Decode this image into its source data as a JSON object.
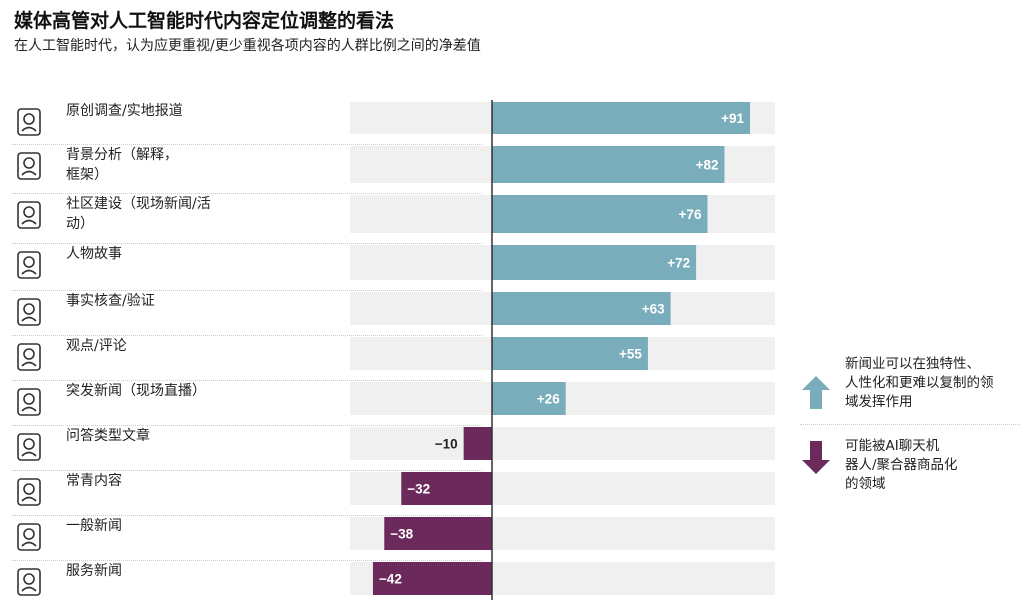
{
  "chart_data": {
    "type": "bar",
    "orientation": "horizontal",
    "title": "媒体高管对人工智能时代内容定位调整的看法",
    "subtitle": "在人工智能时代，认为应更重视/更少重视各项内容的人群比例之间的净差值",
    "categories": [
      "原创调查/实地报道",
      "背景分析（解释，框架）",
      "社区建设（现场新闻/活动）",
      "人物故事",
      "事实核查/验证",
      "观点/评论",
      "突发新闻（现场直播）",
      "问答类型文章",
      "常青内容",
      "一般新闻",
      "服务新闻"
    ],
    "category_lines": [
      [
        "原创调查/实地报道"
      ],
      [
        "背景分析（解释，",
        "框架）"
      ],
      [
        "社区建设（现场新闻/活",
        "动）"
      ],
      [
        "人物故事"
      ],
      [
        "事实核查/验证"
      ],
      [
        "观点/评论"
      ],
      [
        "突发新闻（现场直播）"
      ],
      [
        "问答类型文章"
      ],
      [
        "常青内容"
      ],
      [
        "一般新闻"
      ],
      [
        "服务新闻"
      ]
    ],
    "icons": [
      "reporter-icon",
      "analysis-magnifier-icon",
      "community-network-icon",
      "person-story-icon",
      "fact-check-icon",
      "opinion-chat-icon",
      "breaking-news-icon",
      "qa-article-icon",
      "evergreen-content-icon",
      "general-news-globe-icon",
      "service-news-gear-icon"
    ],
    "values": [
      91,
      82,
      76,
      72,
      63,
      55,
      26,
      -10,
      -32,
      -38,
      -42
    ],
    "data_labels": [
      "+91",
      "+82",
      "+76",
      "+72",
      "+63",
      "+55",
      "+26",
      "−10",
      "−32",
      "−38",
      "−42"
    ],
    "xlim": [
      -50,
      100
    ],
    "colors": {
      "positive": "#79adbb",
      "negative": "#6b2a5b",
      "track": "#f0f0f0"
    },
    "legend": [
      {
        "icon": "arrow-up-icon",
        "color": "#79adbb",
        "text": "新闻业可以在独特性、人性化和更难以复制的领域发挥作用",
        "lines": [
          "新闻业可以在独特性、",
          "人性化和更难以复制的领",
          "域发挥作用"
        ]
      },
      {
        "icon": "arrow-down-icon",
        "color": "#6b2a5b",
        "text": "可能被AI聊天机器人/聚合器商品化的领域",
        "lines": [
          "可能被AI聊天机",
          "器人/聚合器商品化",
          "的领域"
        ]
      }
    ],
    "legend_position": "right"
  }
}
